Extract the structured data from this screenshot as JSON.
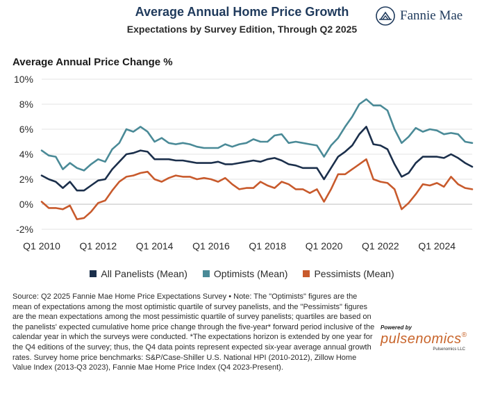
{
  "header": {
    "title": "Average Annual Home Price Growth",
    "subtitle": "Expectations by Survey Edition, Through Q2 2025",
    "brand": "Fannie Mae"
  },
  "footnote": "Source: Q2 2025 Fannie Mae Home Price Expectations Survey • Note: The \"Optimists\" figures are the mean of expectations among the most optimistic quartile of survey panelists, and the \"Pessimists\" figures are the mean expectations among the most pessimistic quartile of survey panelists; quartiles are based on the panelists' expected cumulative home price change through the five-year* forward period inclusive of the calendar year in which the surveys were conducted. *The expectations horizon is extended by one year for the Q4 editions of the survey; thus, the Q4 data points represent expected six-year average annual growth rates. Survey home price benchmarks: S&P/Case-Shiller U.S. National HPI (2010-2012), Zillow Home Value Index (2013-Q3 2023), Fannie Mae Home Price Index (Q4 2023-Present).",
  "powered_by": {
    "label": "Powered by",
    "logo": "pulsenomics",
    "company": "Pulsenomics LLC"
  },
  "chart_data": {
    "type": "line",
    "title": "Average Annual Home Price Growth",
    "subtitle": "Expectations by Survey Edition, Through Q2 2025",
    "ylabel": "Average Annual Price Change %",
    "xlabel": "",
    "ylim": [
      -2,
      10
    ],
    "yticks": [
      -2,
      0,
      2,
      4,
      6,
      8,
      10
    ],
    "ytick_labels": [
      "-2%",
      "0%",
      "2%",
      "4%",
      "6%",
      "8%",
      "10%"
    ],
    "xlim": [
      2010.0,
      2025.25
    ],
    "xticks": [
      2010,
      2012,
      2014,
      2016,
      2018,
      2020,
      2022,
      2024
    ],
    "xtick_labels": [
      "Q1 2010",
      "Q1 2012",
      "Q1 2014",
      "Q1 2016",
      "Q1 2018",
      "Q1 2020",
      "Q1 2022",
      "Q1 2024"
    ],
    "grid": "horizontal",
    "legend_position": "bottom",
    "x": [
      2010.0,
      2010.25,
      2010.5,
      2010.75,
      2011.0,
      2011.25,
      2011.5,
      2011.75,
      2012.0,
      2012.25,
      2012.5,
      2012.75,
      2013.0,
      2013.25,
      2013.5,
      2013.75,
      2014.0,
      2014.25,
      2014.5,
      2014.75,
      2015.0,
      2015.25,
      2015.5,
      2015.75,
      2016.0,
      2016.25,
      2016.5,
      2016.75,
      2017.0,
      2017.25,
      2017.5,
      2017.75,
      2018.0,
      2018.25,
      2018.5,
      2018.75,
      2019.0,
      2019.25,
      2019.5,
      2019.75,
      2020.0,
      2020.25,
      2020.5,
      2020.75,
      2021.0,
      2021.25,
      2021.5,
      2021.75,
      2022.0,
      2022.25,
      2022.5,
      2022.75,
      2023.0,
      2023.25,
      2023.5,
      2023.75,
      2024.0,
      2024.25,
      2024.5,
      2024.75,
      2025.0,
      2025.25
    ],
    "series": [
      {
        "name": "All Panelists (Mean)",
        "color": "#1b2f4b",
        "values": [
          2.3,
          2.0,
          1.8,
          1.3,
          1.8,
          1.1,
          1.1,
          1.5,
          1.9,
          2.0,
          2.8,
          3.4,
          4.0,
          4.1,
          4.3,
          4.2,
          3.6,
          3.6,
          3.6,
          3.5,
          3.5,
          3.4,
          3.3,
          3.3,
          3.3,
          3.4,
          3.2,
          3.2,
          3.3,
          3.4,
          3.5,
          3.4,
          3.6,
          3.7,
          3.5,
          3.2,
          3.1,
          2.9,
          2.9,
          2.9,
          2.0,
          2.9,
          3.8,
          4.2,
          4.7,
          5.6,
          6.2,
          4.8,
          4.7,
          4.4,
          3.2,
          2.2,
          2.5,
          3.3,
          3.8,
          3.8,
          3.8,
          3.7,
          4.0,
          3.7,
          3.3,
          3.0
        ]
      },
      {
        "name": "Optimists (Mean)",
        "color": "#4a8a97",
        "values": [
          4.3,
          3.9,
          3.8,
          2.8,
          3.3,
          2.9,
          2.7,
          3.2,
          3.6,
          3.4,
          4.4,
          4.9,
          6.0,
          5.8,
          6.2,
          5.8,
          5.0,
          5.3,
          4.9,
          4.8,
          4.9,
          4.8,
          4.6,
          4.5,
          4.5,
          4.5,
          4.8,
          4.6,
          4.8,
          4.9,
          5.2,
          5.0,
          5.0,
          5.5,
          5.6,
          4.9,
          5.0,
          4.9,
          4.8,
          4.7,
          3.8,
          4.7,
          5.3,
          6.2,
          7.0,
          8.0,
          8.4,
          7.9,
          7.9,
          7.5,
          6.0,
          4.9,
          5.4,
          6.1,
          5.8,
          6.0,
          5.9,
          5.6,
          5.7,
          5.6,
          5.0,
          4.9
        ]
      },
      {
        "name": "Pessimists (Mean)",
        "color": "#c85a2c",
        "values": [
          0.2,
          -0.3,
          -0.3,
          -0.4,
          -0.1,
          -1.2,
          -1.1,
          -0.6,
          0.1,
          0.3,
          1.1,
          1.8,
          2.2,
          2.3,
          2.5,
          2.6,
          2.0,
          1.8,
          2.1,
          2.3,
          2.2,
          2.2,
          2.0,
          2.1,
          2.0,
          1.8,
          2.1,
          1.6,
          1.2,
          1.3,
          1.3,
          1.8,
          1.5,
          1.3,
          1.8,
          1.6,
          1.2,
          1.2,
          0.9,
          1.2,
          0.2,
          1.2,
          2.4,
          2.4,
          2.8,
          3.2,
          3.6,
          2.0,
          1.8,
          1.7,
          1.2,
          -0.4,
          0.1,
          0.8,
          1.6,
          1.5,
          1.7,
          1.4,
          2.2,
          1.6,
          1.3,
          1.2
        ]
      }
    ]
  }
}
